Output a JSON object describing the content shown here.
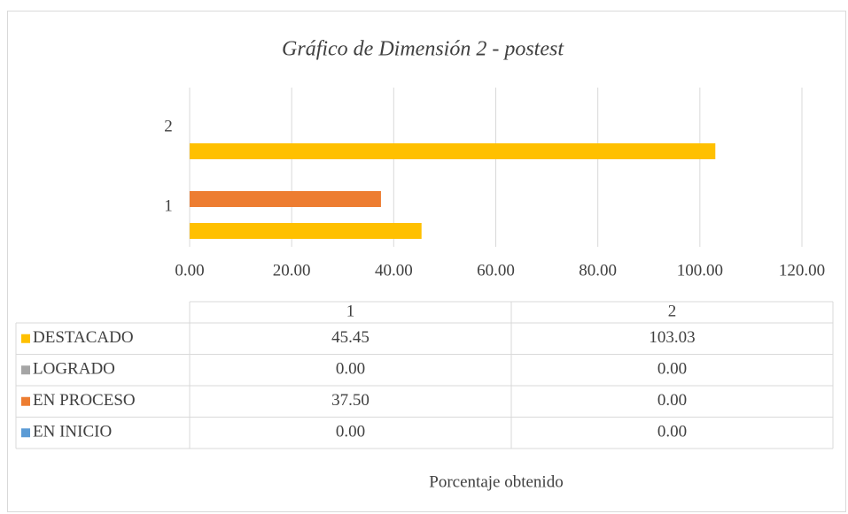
{
  "chart_data": {
    "type": "bar",
    "orientation": "horizontal",
    "title": "Gráfico de Dimensión 2 - postest",
    "x_label": "Porcentaje obtenido",
    "categories": [
      "1",
      "2"
    ],
    "series": [
      {
        "name": "DESTACADO",
        "color": "#ffc000",
        "values": [
          45.45,
          103.03
        ],
        "value_labels": [
          "45.45",
          "103.03"
        ]
      },
      {
        "name": "LOGRADO",
        "color": "#a5a5a5",
        "values": [
          0,
          0
        ],
        "value_labels": [
          "0.00",
          "0.00"
        ]
      },
      {
        "name": "EN PROCESO",
        "color": "#ed7d31",
        "values": [
          37.5,
          0
        ],
        "value_labels": [
          "37.50",
          "0.00"
        ]
      },
      {
        "name": "EN INICIO",
        "color": "#5b9bd5",
        "values": [
          0,
          0
        ],
        "value_labels": [
          "0.00",
          "0.00"
        ]
      }
    ],
    "xlim": [
      0,
      120
    ],
    "xticks": [
      {
        "value": 0,
        "label": "0.00"
      },
      {
        "value": 20,
        "label": "20.00"
      },
      {
        "value": 40,
        "label": "40.00"
      },
      {
        "value": 60,
        "label": "60.00"
      },
      {
        "value": 80,
        "label": "80.00"
      },
      {
        "value": 100,
        "label": "100.00"
      },
      {
        "value": 120,
        "label": "120.00"
      }
    ],
    "grid": true,
    "data_table": true
  }
}
